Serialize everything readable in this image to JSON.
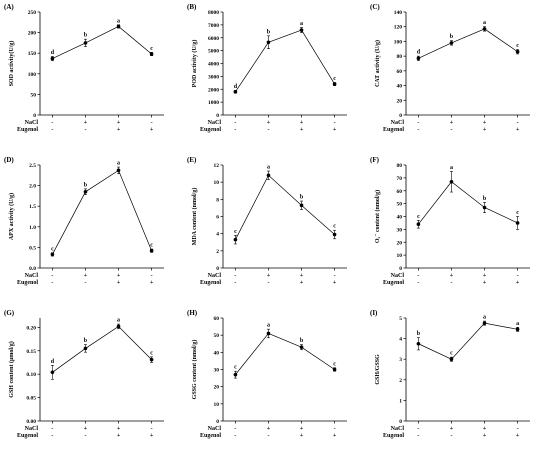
{
  "figure_title": "",
  "treatments": {
    "rows": [
      {
        "label": "NaCl",
        "signs": [
          "-",
          "+",
          "+",
          "-"
        ]
      },
      {
        "label": "Eugenol",
        "signs": [
          "-",
          "-",
          "+",
          "+"
        ]
      }
    ]
  },
  "chart_data": [
    {
      "type": "line",
      "panel": "(A)",
      "ylabel": "SOD activity(U/g)",
      "ylim": [
        0,
        250
      ],
      "yticks": [
        0,
        50,
        100,
        150,
        200,
        250
      ],
      "x": [
        1,
        2,
        3,
        4
      ],
      "values": [
        137,
        175,
        215,
        148
      ],
      "errors": [
        5,
        9,
        4,
        4
      ],
      "letters": [
        "d",
        "b",
        "a",
        "c"
      ]
    },
    {
      "type": "line",
      "panel": "(B)",
      "ylabel": "POD activity (U/g)",
      "ylim": [
        0,
        8000
      ],
      "yticks": [
        0,
        1000,
        2000,
        3000,
        4000,
        5000,
        6000,
        7000,
        8000
      ],
      "x": [
        1,
        2,
        3,
        4
      ],
      "values": [
        1800,
        5650,
        6600,
        2400
      ],
      "errors": [
        100,
        500,
        200,
        120
      ],
      "letters": [
        "d",
        "b",
        "a",
        "c"
      ]
    },
    {
      "type": "line",
      "panel": "(C)",
      "ylabel": "CAT activity (U/g)",
      "ylim": [
        0,
        140
      ],
      "yticks": [
        0,
        20,
        40,
        60,
        80,
        100,
        120,
        140
      ],
      "x": [
        1,
        2,
        3,
        4
      ],
      "values": [
        77,
        98,
        117,
        86
      ],
      "errors": [
        3,
        3,
        3,
        3
      ],
      "letters": [
        "d",
        "b",
        "a",
        "c"
      ]
    },
    {
      "type": "line",
      "panel": "(D)",
      "ylabel": "APX activity (U/g)",
      "ylim": [
        0,
        2.5
      ],
      "yticks": [
        0.0,
        0.5,
        1.0,
        1.5,
        2.0,
        2.5
      ],
      "x": [
        1,
        2,
        3,
        4
      ],
      "values": [
        0.33,
        1.85,
        2.37,
        0.42
      ],
      "errors": [
        0.04,
        0.07,
        0.08,
        0.04
      ],
      "letters": [
        "c",
        "b",
        "a",
        "c"
      ]
    },
    {
      "type": "line",
      "panel": "(E)",
      "ylabel": "MDA content (nmol/g)",
      "ylim": [
        0,
        12
      ],
      "yticks": [
        0,
        2,
        4,
        6,
        8,
        10,
        12
      ],
      "x": [
        1,
        2,
        3,
        4
      ],
      "values": [
        3.3,
        10.8,
        7.3,
        3.9
      ],
      "errors": [
        0.5,
        0.5,
        0.5,
        0.5
      ],
      "letters": [
        "c",
        "a",
        "b",
        "c"
      ]
    },
    {
      "type": "line",
      "panel": "(F)",
      "ylabel": "O₂⁻ content (nmol/g)",
      "ylim": [
        0,
        80
      ],
      "yticks": [
        0,
        10,
        20,
        30,
        40,
        50,
        60,
        70,
        80
      ],
      "x": [
        1,
        2,
        3,
        4
      ],
      "values": [
        34,
        67,
        47,
        35
      ],
      "errors": [
        3,
        8,
        4,
        5
      ],
      "letters": [
        "c",
        "a",
        "b",
        "c"
      ]
    },
    {
      "type": "line",
      "panel": "(G)",
      "ylabel": "GSH content (μmol/g)",
      "ylim": [
        0,
        0.22
      ],
      "yticks": [
        0.0,
        0.05,
        0.1,
        0.15,
        0.2
      ],
      "x": [
        1,
        2,
        3,
        4
      ],
      "values": [
        0.104,
        0.155,
        0.202,
        0.131
      ],
      "errors": [
        0.015,
        0.008,
        0.005,
        0.006
      ],
      "letters": [
        "d",
        "b",
        "a",
        "c"
      ]
    },
    {
      "type": "line",
      "panel": "(H)",
      "ylabel": "GSSG content (nmol/g)",
      "ylim": [
        0,
        60
      ],
      "yticks": [
        0,
        10,
        20,
        30,
        40,
        50,
        60
      ],
      "x": [
        1,
        2,
        3,
        4
      ],
      "values": [
        27,
        51,
        43,
        30
      ],
      "errors": [
        2,
        2.5,
        1.5,
        1
      ],
      "letters": [
        "c",
        "a",
        "b",
        "c"
      ]
    },
    {
      "type": "line",
      "panel": "(I)",
      "ylabel": "GSH/GSSG",
      "ylim": [
        0,
        5
      ],
      "yticks": [
        0,
        1,
        2,
        3,
        4,
        5
      ],
      "x": [
        1,
        2,
        3,
        4
      ],
      "values": [
        3.75,
        3.0,
        4.75,
        4.45
      ],
      "errors": [
        0.3,
        0.1,
        0.1,
        0.1
      ],
      "letters": [
        "b",
        "c",
        "a",
        "a"
      ]
    }
  ]
}
